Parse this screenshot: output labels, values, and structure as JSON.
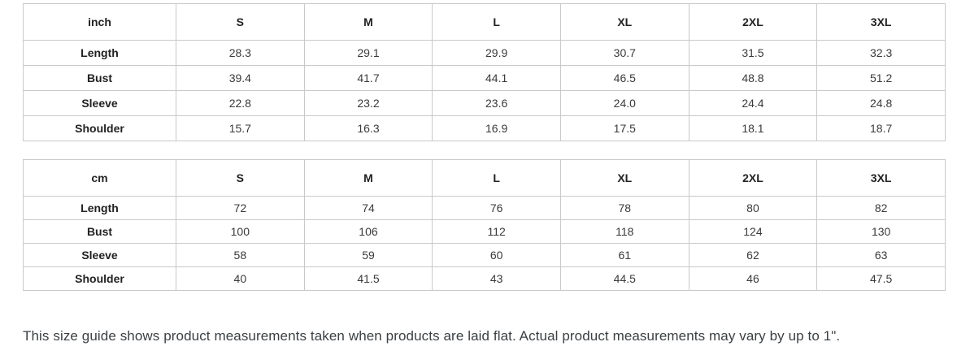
{
  "tables": [
    {
      "unit": "inch",
      "sizes": [
        "S",
        "M",
        "L",
        "XL",
        "2XL",
        "3XL"
      ],
      "rows": [
        {
          "label": "Length",
          "values": [
            "28.3",
            "29.1",
            "29.9",
            "30.7",
            "31.5",
            "32.3"
          ]
        },
        {
          "label": "Bust",
          "values": [
            "39.4",
            "41.7",
            "44.1",
            "46.5",
            "48.8",
            "51.2"
          ]
        },
        {
          "label": "Sleeve",
          "values": [
            "22.8",
            "23.2",
            "23.6",
            "24.0",
            "24.4",
            "24.8"
          ]
        },
        {
          "label": "Shoulder",
          "values": [
            "15.7",
            "16.3",
            "16.9",
            "17.5",
            "18.1",
            "18.7"
          ]
        }
      ]
    },
    {
      "unit": "cm",
      "sizes": [
        "S",
        "M",
        "L",
        "XL",
        "2XL",
        "3XL"
      ],
      "rows": [
        {
          "label": "Length",
          "values": [
            "72",
            "74",
            "76",
            "78",
            "80",
            "82"
          ]
        },
        {
          "label": "Bust",
          "values": [
            "100",
            "106",
            "112",
            "118",
            "124",
            "130"
          ]
        },
        {
          "label": "Sleeve",
          "values": [
            "58",
            "59",
            "60",
            "61",
            "62",
            "63"
          ]
        },
        {
          "label": "Shoulder",
          "values": [
            "40",
            "41.5",
            "43",
            "44.5",
            "46",
            "47.5"
          ]
        }
      ]
    }
  ],
  "note": "This size guide shows product measurements taken when products are laid flat. Actual product measurements may vary by up to 1\".",
  "colors": {
    "border": "#c9c9c9",
    "header_text": "#222222",
    "value_text": "#3a3a3a",
    "note_text": "#3c4043",
    "background": "#ffffff"
  }
}
